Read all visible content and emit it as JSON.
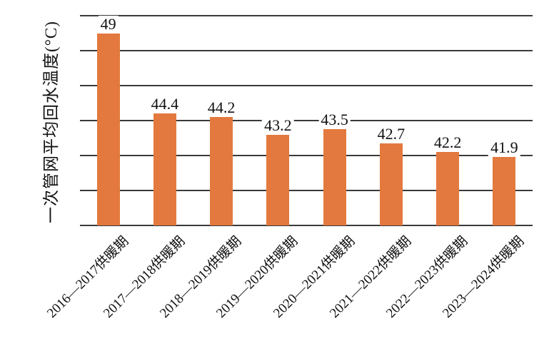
{
  "chart_data": {
    "type": "bar",
    "title": "",
    "categories": [
      "2016—2017供暖期",
      "2017—2018供暖期",
      "2018—2019供暖期",
      "2019—2020供暖期",
      "2020—2021供暖期",
      "2021—2022供暖期",
      "2022—2023供暖期",
      "2023—2024供暖期"
    ],
    "values": [
      49,
      44.4,
      44.2,
      43.2,
      43.5,
      42.7,
      42.2,
      41.9
    ],
    "value_labels": [
      "49",
      "44.4",
      "44.2",
      "43.2",
      "43.5",
      "42.7",
      "42.2",
      "41.9"
    ],
    "xlabel": "",
    "ylabel": "一次管网平均回水温度(°C)",
    "ylim": [
      38,
      50
    ],
    "ytick_step": 2,
    "y_tick_labels_visible": false,
    "grid": "horizontal",
    "legend": "none",
    "colors": {
      "bar": "#E3793E",
      "gridline": "#3A3A3A",
      "text": "#111111",
      "background": "#FFFFFF"
    }
  }
}
